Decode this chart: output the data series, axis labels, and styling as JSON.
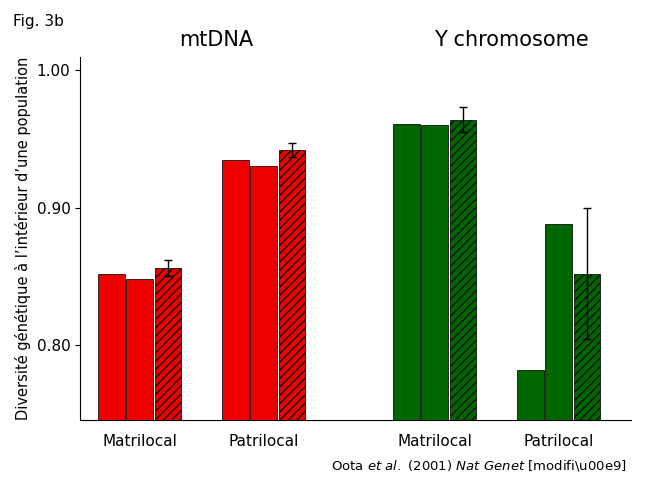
{
  "title_fig": "Fig. 3b",
  "ylabel": "Diversité génétique à l’intérieur d’une population",
  "group_labels": [
    "Matrilocal",
    "Patrilocal",
    "Matrilocal",
    "Patrilocal"
  ],
  "ylim": [
    0.745,
    1.01
  ],
  "yticks": [
    0.8,
    0.9,
    1.0
  ],
  "bar_width": 0.18,
  "groups": [
    {
      "label": "Matrilocal",
      "section": "mtDNA",
      "bars": [
        {
          "value": 0.852,
          "err": 0.0,
          "color": "#EE0000",
          "hatch": null
        },
        {
          "value": 0.848,
          "err": 0.0,
          "color": "#EE0000",
          "hatch": null
        },
        {
          "value": 0.856,
          "err": 0.006,
          "color": "#EE0000",
          "hatch": "////"
        }
      ]
    },
    {
      "label": "Patrilocal",
      "section": "mtDNA",
      "bars": [
        {
          "value": 0.935,
          "err": 0.0,
          "color": "#EE0000",
          "hatch": null
        },
        {
          "value": 0.93,
          "err": 0.0,
          "color": "#EE0000",
          "hatch": null
        },
        {
          "value": 0.942,
          "err": 0.005,
          "color": "#EE0000",
          "hatch": "////"
        }
      ]
    },
    {
      "label": "Matrilocal",
      "section": "Y chromosome",
      "bars": [
        {
          "value": 0.961,
          "err": 0.0,
          "color": "#006600",
          "hatch": null
        },
        {
          "value": 0.96,
          "err": 0.0,
          "color": "#006600",
          "hatch": null
        },
        {
          "value": 0.964,
          "err": 0.009,
          "color": "#006600",
          "hatch": "////"
        }
      ]
    },
    {
      "label": "Patrilocal",
      "section": "Y chromosome",
      "bars": [
        {
          "value": 0.782,
          "err": 0.0,
          "color": "#006600",
          "hatch": null
        },
        {
          "value": 0.888,
          "err": 0.0,
          "color": "#006600",
          "hatch": null
        },
        {
          "value": 0.852,
          "err": 0.048,
          "color": "#006600",
          "hatch": "////"
        }
      ]
    }
  ],
  "section_labels": [
    {
      "text": "mtDNA",
      "group_indices": [
        0,
        1
      ]
    },
    {
      "text": "Y chromosome",
      "group_indices": [
        2,
        3
      ]
    }
  ],
  "background_color": "#ffffff",
  "section_label_fontsize": 15,
  "axis_label_fontsize": 10.5,
  "tick_fontsize": 11,
  "group_label_fontsize": 11
}
